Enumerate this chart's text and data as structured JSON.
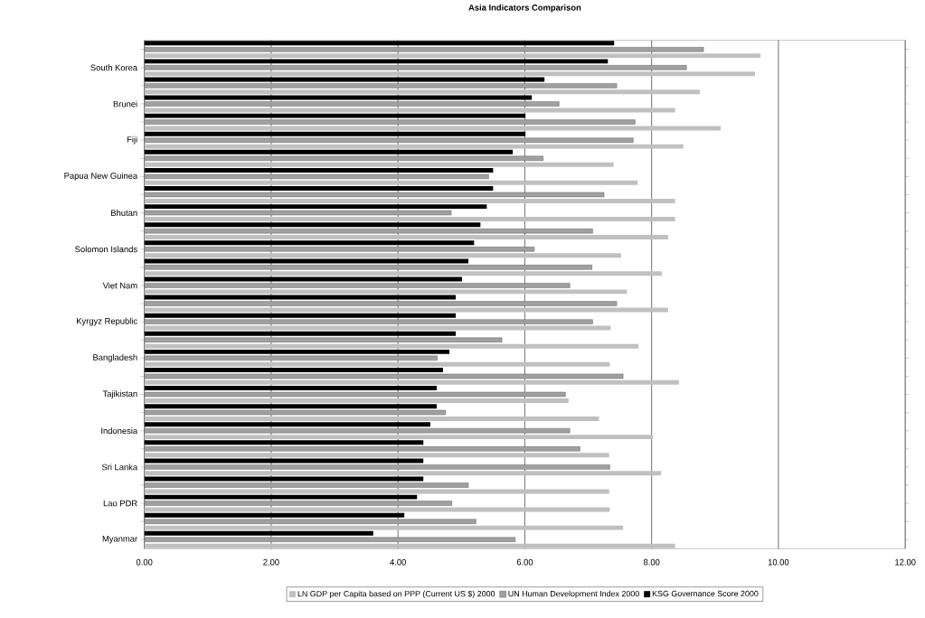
{
  "chart_data": {
    "type": "bar",
    "orientation": "horizontal",
    "title": "Asia Indicators Comparison",
    "categories": [
      null,
      "South Korea",
      null,
      "Brunei",
      null,
      "Fiji",
      null,
      "Papua New Guinea",
      null,
      "Bhutan",
      null,
      "Solomon Islands",
      null,
      "Viet Nam",
      null,
      "Kyrgyz Republic",
      null,
      "Bangladesh",
      null,
      "Tajikistan",
      null,
      "Indonesia",
      null,
      "Sri Lanka",
      null,
      "Lao PDR",
      null,
      "Myanmar"
    ],
    "series": [
      {
        "name": "LN GDP per Capita based on PPP (Current US $) 2000",
        "color": "#c0c0c0",
        "values": [
          9.72,
          9.63,
          8.76,
          8.37,
          9.09,
          8.5,
          7.4,
          7.78,
          8.37,
          8.37,
          8.26,
          7.52,
          8.16,
          7.61,
          8.26,
          7.35,
          7.79,
          7.34,
          8.43,
          6.69,
          7.17,
          8.02,
          7.33,
          8.15,
          7.33,
          7.34,
          7.55,
          8.37
        ]
      },
      {
        "name": "UN Human Development Index 2000",
        "color": "#a0a0a0",
        "values": [
          8.82,
          8.55,
          7.45,
          6.54,
          7.74,
          7.71,
          6.29,
          5.43,
          7.25,
          4.84,
          7.07,
          6.15,
          7.06,
          6.71,
          7.45,
          7.07,
          5.64,
          4.62,
          7.55,
          6.64,
          4.75,
          6.71,
          6.87,
          7.34,
          5.11,
          4.85,
          5.23,
          5.85
        ]
      },
      {
        "name": "KSG Governance Score  2000",
        "color": "#000000",
        "values": [
          7.41,
          7.31,
          6.31,
          6.11,
          6.01,
          6.01,
          5.81,
          5.5,
          5.5,
          5.4,
          5.3,
          5.2,
          5.11,
          5.01,
          4.91,
          4.91,
          4.91,
          4.81,
          4.71,
          4.61,
          4.61,
          4.51,
          4.4,
          4.4,
          4.4,
          4.3,
          4.1,
          3.61
        ]
      }
    ],
    "xlim": [
      0,
      12
    ],
    "xticks": [
      {
        "value": 0,
        "label": "0.00"
      },
      {
        "value": 2,
        "label": "2.00"
      },
      {
        "value": 4,
        "label": "4.00"
      },
      {
        "value": 6,
        "label": "6.00"
      },
      {
        "value": 8,
        "label": "8.00"
      },
      {
        "value": 10,
        "label": "10.00"
      },
      {
        "value": 12,
        "label": "12.00"
      }
    ],
    "grid": "x",
    "legend": "bottom"
  }
}
